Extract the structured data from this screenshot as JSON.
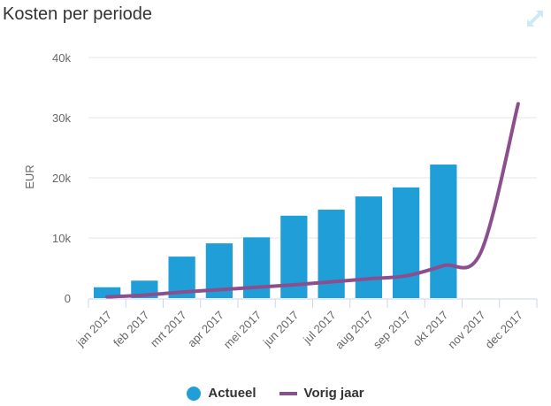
{
  "header": {
    "title": "Kosten per periode",
    "expand_icon": "expand-icon"
  },
  "chart_data": {
    "type": "bar",
    "title": "Kosten per periode",
    "xlabel": "",
    "ylabel": "EUR",
    "ylim": [
      0,
      40000
    ],
    "yticks": [
      0,
      10000,
      20000,
      30000,
      40000
    ],
    "ytick_labels": [
      "0",
      "10k",
      "20k",
      "30k",
      "40k"
    ],
    "grid": true,
    "categories": [
      "jan 2017",
      "feb 2017",
      "mrt 2017",
      "apr 2017",
      "mei 2017",
      "jun 2017",
      "jul 2017",
      "aug 2017",
      "sep 2017",
      "okt 2017",
      "nov 2017",
      "dec 2017"
    ],
    "series": [
      {
        "name": "Actueel",
        "type": "bar",
        "color": "#1f9ed8",
        "values": [
          1800,
          2900,
          6900,
          9100,
          10100,
          13700,
          14700,
          16900,
          18400,
          22200,
          null,
          null
        ]
      },
      {
        "name": "Vorig jaar",
        "type": "line",
        "color": "#8b4f8d",
        "values": [
          200,
          500,
          1000,
          1400,
          1800,
          2200,
          2700,
          3200,
          3700,
          5400,
          7600,
          32300
        ]
      }
    ],
    "legend": "bottom-center"
  }
}
